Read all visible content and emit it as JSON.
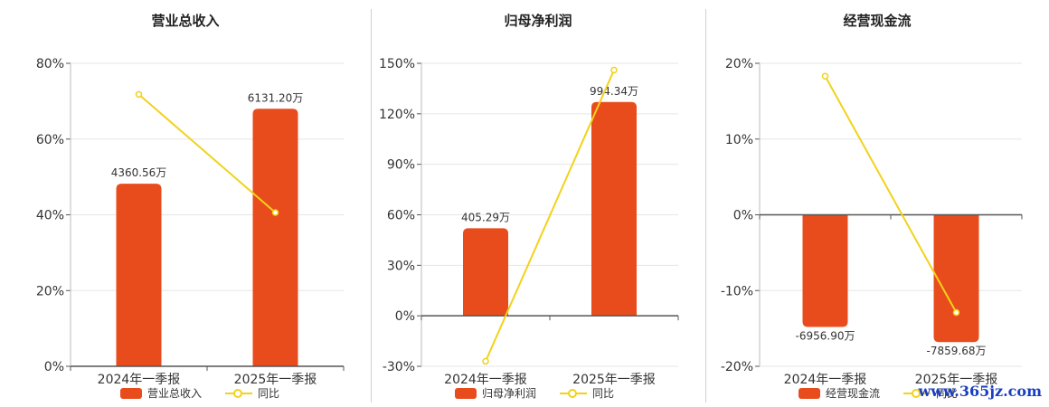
{
  "watermark": "www.365jz.com",
  "colors": {
    "bar": "#e84c1c",
    "line": "#f2d21b",
    "axis": "#555555",
    "grid": "#e6e6e6"
  },
  "chart_data": [
    {
      "type": "bar",
      "title": "营业总收入",
      "categories": [
        "2024年一季报",
        "2025年一季报"
      ],
      "series": [
        {
          "name": "营业总收入",
          "kind": "bar",
          "values": [
            48.2,
            68.0
          ],
          "labels": [
            "4360.56万",
            "6131.20万"
          ]
        },
        {
          "name": "同比",
          "kind": "line",
          "values": [
            71.8,
            40.6
          ]
        }
      ],
      "ylim": [
        0,
        80
      ],
      "yticks": [
        0,
        20,
        40,
        60,
        80
      ],
      "ytick_labels": [
        "0%",
        "20%",
        "40%",
        "60%",
        "80%"
      ]
    },
    {
      "type": "bar",
      "title": "归母净利润",
      "categories": [
        "2024年一季报",
        "2025年一季报"
      ],
      "series": [
        {
          "name": "归母净利润",
          "kind": "bar",
          "values": [
            52,
            127
          ],
          "labels": [
            "405.29万",
            "994.34万"
          ]
        },
        {
          "name": "同比",
          "kind": "line",
          "values": [
            -27,
            146
          ]
        }
      ],
      "ylim": [
        -30,
        150
      ],
      "yticks": [
        -30,
        0,
        30,
        60,
        90,
        120,
        150
      ],
      "ytick_labels": [
        "-30%",
        "0%",
        "30%",
        "60%",
        "90%",
        "120%",
        "150%"
      ]
    },
    {
      "type": "bar",
      "title": "经营现金流",
      "categories": [
        "2024年一季报",
        "2025年一季报"
      ],
      "series": [
        {
          "name": "经营现金流",
          "kind": "bar",
          "values": [
            -14.8,
            -16.8
          ],
          "labels": [
            "-6956.90万",
            "-7859.68万"
          ]
        },
        {
          "name": "同比",
          "kind": "line",
          "values": [
            18.3,
            -12.9
          ]
        }
      ],
      "ylim": [
        -20,
        20
      ],
      "yticks": [
        -20,
        -10,
        0,
        10,
        20
      ],
      "ytick_labels": [
        "-20%",
        "-10%",
        "0%",
        "10%",
        "20%"
      ]
    }
  ]
}
